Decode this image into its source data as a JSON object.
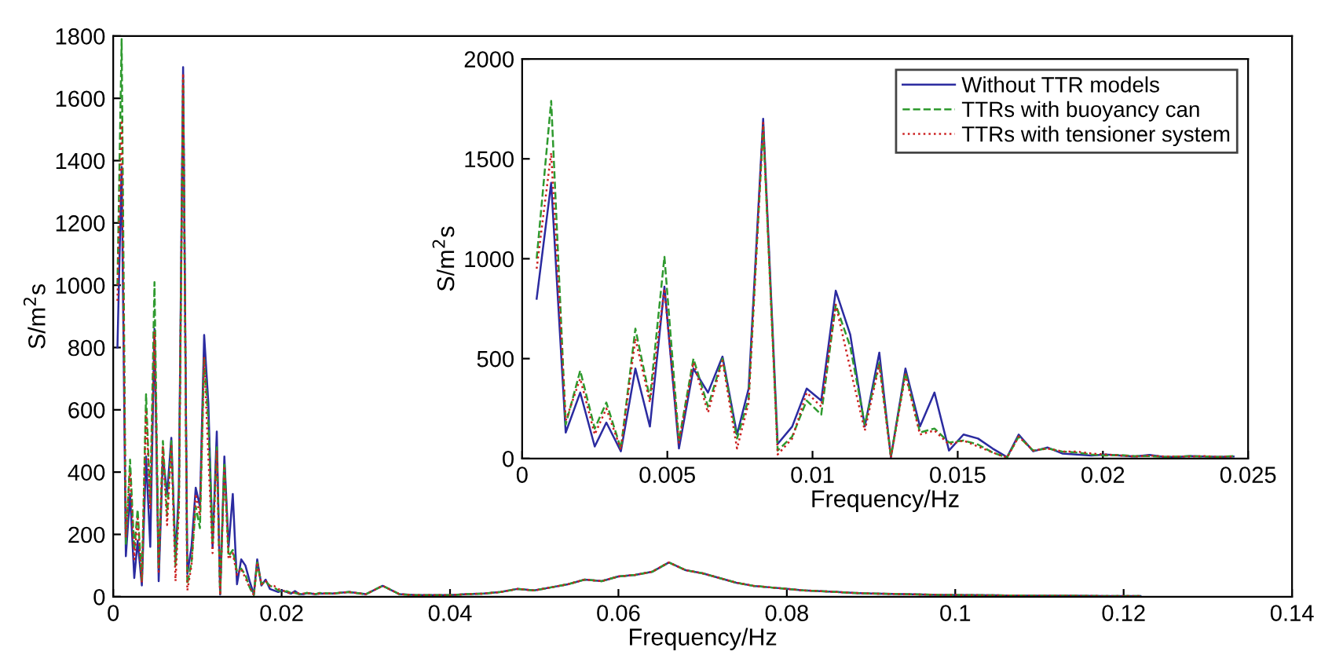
{
  "chart_data": [
    {
      "type": "line",
      "xlabel": "Frequency/Hz",
      "ylabel": "S/m$^{2}$s",
      "xlim": [
        0,
        0.14
      ],
      "xticks": [
        0,
        0.02,
        0.04,
        0.06,
        0.08,
        0.1,
        0.12,
        0.14
      ],
      "ylim": [
        0,
        1800
      ],
      "yticks": [
        0,
        200,
        400,
        600,
        800,
        1000,
        1200,
        1400,
        1600,
        1800
      ],
      "grid": false,
      "legend": false,
      "x": [
        0.0005,
        0.001,
        0.0015,
        0.002,
        0.0025,
        0.0029,
        0.0034,
        0.0039,
        0.0044,
        0.0049,
        0.0054,
        0.0059,
        0.0064,
        0.0069,
        0.0074,
        0.0078,
        0.0083,
        0.0088,
        0.0093,
        0.0098,
        0.0103,
        0.0108,
        0.0113,
        0.0118,
        0.0123,
        0.0127,
        0.0132,
        0.0137,
        0.0142,
        0.0147,
        0.0152,
        0.0157,
        0.0162,
        0.0167,
        0.0171,
        0.0176,
        0.0181,
        0.0186,
        0.0191,
        0.0196,
        0.0201,
        0.0206,
        0.0211,
        0.0216,
        0.0221,
        0.0226,
        0.023,
        0.0235,
        0.024,
        0.0245,
        0.026,
        0.028,
        0.03,
        0.032,
        0.034,
        0.036,
        0.038,
        0.04,
        0.042,
        0.044,
        0.046,
        0.048,
        0.05,
        0.052,
        0.054,
        0.056,
        0.058,
        0.06,
        0.062,
        0.064,
        0.066,
        0.068,
        0.07,
        0.072,
        0.074,
        0.076,
        0.078,
        0.08,
        0.082,
        0.084,
        0.086,
        0.088,
        0.09,
        0.094,
        0.098,
        0.102,
        0.106,
        0.11,
        0.114,
        0.118,
        0.122
      ],
      "series": [
        {
          "color": "#2b2ba0",
          "line_style": "solid",
          "values": [
            800,
            1380,
            130,
            330,
            60,
            180,
            36,
            450,
            160,
            860,
            50,
            450,
            330,
            510,
            120,
            350,
            1700,
            73,
            160,
            350,
            290,
            840,
            620,
            160,
            530,
            7,
            450,
            160,
            330,
            40,
            120,
            100,
            50,
            7,
            120,
            36,
            55,
            25,
            20,
            15,
            20,
            15,
            10,
            18,
            8,
            8,
            12,
            10,
            8,
            10,
            10,
            15,
            8,
            35,
            8,
            5,
            5,
            5,
            8,
            10,
            15,
            25,
            20,
            30,
            40,
            55,
            50,
            65,
            70,
            80,
            110,
            85,
            75,
            60,
            45,
            35,
            30,
            25,
            20,
            18,
            15,
            12,
            10,
            8,
            6,
            5,
            4,
            3,
            3,
            2,
            2
          ]
        },
        {
          "color": "#2e9a2e",
          "line_style": "dashed",
          "values": [
            1000,
            1790,
            170,
            440,
            150,
            280,
            50,
            650,
            300,
            1010,
            90,
            500,
            260,
            500,
            100,
            300,
            1660,
            40,
            110,
            290,
            220,
            770,
            560,
            170,
            480,
            10,
            430,
            130,
            150,
            80,
            90,
            70,
            30,
            5,
            110,
            40,
            50,
            35,
            30,
            20,
            15,
            18,
            12,
            12,
            8,
            10,
            12,
            10,
            8,
            12,
            10,
            15,
            8,
            35,
            8,
            5,
            5,
            5,
            8,
            10,
            15,
            25,
            20,
            30,
            40,
            55,
            50,
            65,
            70,
            80,
            110,
            85,
            75,
            60,
            45,
            35,
            30,
            25,
            20,
            18,
            15,
            12,
            10,
            8,
            6,
            5,
            4,
            3,
            3,
            2,
            2
          ]
        },
        {
          "color": "#cc2020",
          "line_style": "dotted",
          "values": [
            950,
            1530,
            190,
            400,
            120,
            250,
            45,
            600,
            280,
            850,
            80,
            480,
            230,
            490,
            50,
            280,
            1680,
            20,
            100,
            330,
            260,
            770,
            450,
            140,
            470,
            5,
            420,
            120,
            140,
            70,
            90,
            60,
            30,
            5,
            110,
            40,
            50,
            35,
            35,
            25,
            20,
            15,
            10,
            15,
            10,
            10,
            10,
            12,
            8,
            10,
            10,
            15,
            8,
            35,
            8,
            5,
            5,
            5,
            8,
            10,
            15,
            25,
            20,
            30,
            40,
            55,
            50,
            65,
            70,
            80,
            110,
            85,
            75,
            60,
            45,
            35,
            30,
            25,
            20,
            18,
            15,
            12,
            10,
            8,
            6,
            5,
            4,
            3,
            3,
            2,
            2
          ]
        }
      ]
    },
    {
      "type": "line",
      "xlabel": "Frequency/Hz",
      "ylabel": "S/m$^{2}$s",
      "xlim": [
        0,
        0.025
      ],
      "xticks": [
        0,
        0.005,
        0.01,
        0.015,
        0.02,
        0.025
      ],
      "ylim": [
        0,
        2000
      ],
      "yticks": [
        0,
        500,
        1000,
        1500,
        2000
      ],
      "grid": false,
      "legend": "top right",
      "x": [
        0.0005,
        0.001,
        0.0015,
        0.002,
        0.0025,
        0.0029,
        0.0034,
        0.0039,
        0.0044,
        0.0049,
        0.0054,
        0.0059,
        0.0064,
        0.0069,
        0.0074,
        0.0078,
        0.0083,
        0.0088,
        0.0093,
        0.0098,
        0.0103,
        0.0108,
        0.0113,
        0.0118,
        0.0123,
        0.0127,
        0.0132,
        0.0137,
        0.0142,
        0.0147,
        0.0152,
        0.0157,
        0.0162,
        0.0167,
        0.0171,
        0.0176,
        0.0181,
        0.0186,
        0.0191,
        0.0196,
        0.0201,
        0.0206,
        0.0211,
        0.0216,
        0.0221,
        0.0226,
        0.023,
        0.0235,
        0.024,
        0.0245
      ],
      "series": [
        {
          "name": "Without TTR models",
          "color": "#2b2ba0",
          "line_style": "solid",
          "values": [
            800,
            1380,
            130,
            330,
            60,
            180,
            36,
            450,
            160,
            860,
            50,
            450,
            330,
            510,
            120,
            350,
            1700,
            73,
            160,
            350,
            290,
            840,
            620,
            160,
            530,
            7,
            450,
            160,
            330,
            40,
            120,
            100,
            50,
            7,
            120,
            36,
            55,
            25,
            20,
            15,
            20,
            15,
            10,
            18,
            8,
            8,
            12,
            10,
            8,
            10
          ]
        },
        {
          "name": "TTRs with buoyancy can",
          "color": "#2e9a2e",
          "line_style": "dashed",
          "values": [
            1000,
            1790,
            170,
            440,
            150,
            280,
            50,
            650,
            300,
            1010,
            90,
            500,
            260,
            500,
            100,
            300,
            1660,
            40,
            110,
            290,
            220,
            770,
            560,
            170,
            480,
            10,
            430,
            130,
            150,
            80,
            90,
            70,
            30,
            5,
            110,
            40,
            50,
            35,
            30,
            20,
            15,
            18,
            12,
            12,
            8,
            10,
            12,
            10,
            8,
            12
          ]
        },
        {
          "name": "TTRs with tensioner system",
          "color": "#cc2020",
          "line_style": "dotted",
          "values": [
            950,
            1530,
            190,
            400,
            120,
            250,
            45,
            600,
            280,
            850,
            80,
            480,
            230,
            490,
            50,
            280,
            1680,
            20,
            100,
            330,
            260,
            770,
            450,
            140,
            470,
            5,
            420,
            120,
            140,
            70,
            90,
            60,
            30,
            5,
            110,
            40,
            50,
            35,
            35,
            25,
            20,
            15,
            10,
            15,
            10,
            10,
            10,
            12,
            8,
            10
          ]
        }
      ]
    }
  ]
}
